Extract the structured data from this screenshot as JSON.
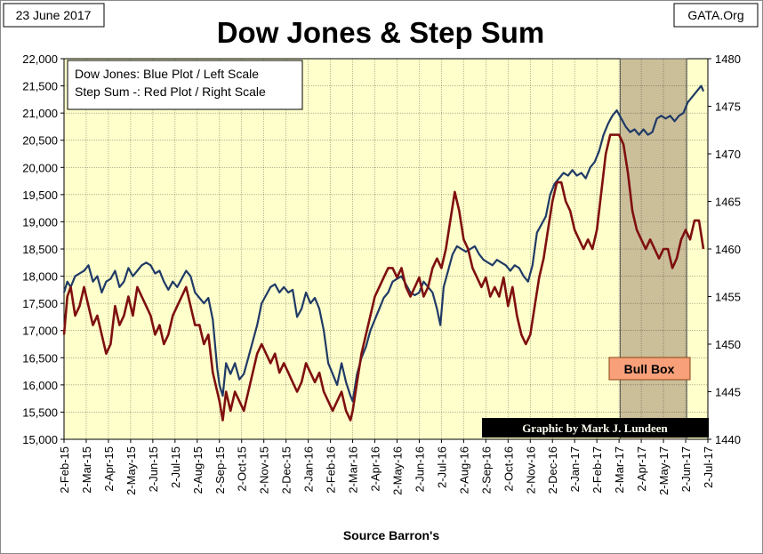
{
  "date_label": "23 June 2017",
  "source_label": "GATA.Org",
  "credit": "Graphic by Mark J. Lundeen",
  "footer": "Source Barron's",
  "annotation": "Bull Box",
  "legend": [
    "Dow Jones: Blue Plot / Left Scale",
    "Step Sum -: Red Plot / Right Scale"
  ],
  "colors": {
    "dow": "#1f3a66",
    "step": "#7f0f0f",
    "plot_bg": "#ffffcc",
    "bull_box": "#cbbf9a",
    "bull_label": "#f7a07a"
  },
  "chart_data": {
    "type": "line",
    "title": "Dow Jones & Step Sum",
    "xlabel": "Source Barron's",
    "x_tick_labels": [
      "2-Feb-15",
      "2-Mar-15",
      "2-Apr-15",
      "2-May-15",
      "2-Jun-15",
      "2-Jul-15",
      "2-Aug-15",
      "2-Sep-15",
      "2-Oct-15",
      "2-Nov-15",
      "2-Dec-15",
      "2-Jan-16",
      "2-Feb-16",
      "2-Mar-16",
      "2-Apr-16",
      "2-May-16",
      "2-Jun-16",
      "2-Jul-16",
      "2-Aug-16",
      "2-Sep-16",
      "2-Oct-16",
      "2-Nov-16",
      "2-Dec-16",
      "2-Jan-17",
      "2-Feb-17",
      "2-Mar-17",
      "2-Apr-17",
      "2-May-17",
      "2-Jun-17",
      "2-Jul-17"
    ],
    "x_range_months": [
      0,
      29
    ],
    "left_axis": {
      "label": "Dow Jones",
      "range": [
        15000,
        22000
      ],
      "ticks": [
        "15,000",
        "15,500",
        "16,000",
        "16,500",
        "17,000",
        "17,500",
        "18,000",
        "18,500",
        "19,000",
        "19,500",
        "20,000",
        "20,500",
        "21,000",
        "21,500",
        "22,000"
      ]
    },
    "right_axis": {
      "label": "Step Sum",
      "range": [
        1440,
        1480
      ],
      "ticks": [
        "1440",
        "1445",
        "1450",
        "1455",
        "1460",
        "1465",
        "1470",
        "1475",
        "1480"
      ]
    },
    "bull_box_months": [
      25.05,
      28.05
    ],
    "series": [
      {
        "name": "Dow Jones",
        "axis": "left",
        "points": [
          [
            0.0,
            17700
          ],
          [
            0.15,
            17900
          ],
          [
            0.3,
            17800
          ],
          [
            0.5,
            18000
          ],
          [
            0.7,
            18050
          ],
          [
            0.9,
            18100
          ],
          [
            1.1,
            18200
          ],
          [
            1.3,
            17900
          ],
          [
            1.5,
            18000
          ],
          [
            1.7,
            17700
          ],
          [
            1.9,
            17900
          ],
          [
            2.1,
            17950
          ],
          [
            2.3,
            18100
          ],
          [
            2.5,
            17800
          ],
          [
            2.7,
            17900
          ],
          [
            2.9,
            18150
          ],
          [
            3.1,
            18000
          ],
          [
            3.3,
            18100
          ],
          [
            3.5,
            18200
          ],
          [
            3.7,
            18250
          ],
          [
            3.9,
            18200
          ],
          [
            4.1,
            18050
          ],
          [
            4.3,
            18100
          ],
          [
            4.5,
            17900
          ],
          [
            4.7,
            17750
          ],
          [
            4.9,
            17900
          ],
          [
            5.1,
            17800
          ],
          [
            5.3,
            17950
          ],
          [
            5.5,
            18100
          ],
          [
            5.7,
            18000
          ],
          [
            5.9,
            17700
          ],
          [
            6.1,
            17600
          ],
          [
            6.3,
            17500
          ],
          [
            6.5,
            17600
          ],
          [
            6.7,
            17200
          ],
          [
            6.9,
            16300
          ],
          [
            7.0,
            16000
          ],
          [
            7.15,
            15800
          ],
          [
            7.3,
            16400
          ],
          [
            7.5,
            16200
          ],
          [
            7.7,
            16400
          ],
          [
            7.9,
            16100
          ],
          [
            8.1,
            16200
          ],
          [
            8.3,
            16500
          ],
          [
            8.5,
            16800
          ],
          [
            8.7,
            17100
          ],
          [
            8.9,
            17500
          ],
          [
            9.1,
            17650
          ],
          [
            9.3,
            17800
          ],
          [
            9.5,
            17850
          ],
          [
            9.7,
            17700
          ],
          [
            9.9,
            17800
          ],
          [
            10.1,
            17700
          ],
          [
            10.3,
            17750
          ],
          [
            10.5,
            17250
          ],
          [
            10.7,
            17400
          ],
          [
            10.9,
            17700
          ],
          [
            11.1,
            17500
          ],
          [
            11.3,
            17600
          ],
          [
            11.5,
            17400
          ],
          [
            11.7,
            17000
          ],
          [
            11.9,
            16400
          ],
          [
            12.1,
            16200
          ],
          [
            12.3,
            16000
          ],
          [
            12.5,
            16400
          ],
          [
            12.7,
            16050
          ],
          [
            12.9,
            15800
          ],
          [
            13.0,
            15700
          ],
          [
            13.2,
            16200
          ],
          [
            13.4,
            16500
          ],
          [
            13.6,
            16700
          ],
          [
            13.8,
            17000
          ],
          [
            14.0,
            17200
          ],
          [
            14.2,
            17400
          ],
          [
            14.4,
            17600
          ],
          [
            14.6,
            17700
          ],
          [
            14.8,
            17900
          ],
          [
            15.0,
            17950
          ],
          [
            15.2,
            18000
          ],
          [
            15.4,
            17850
          ],
          [
            15.6,
            17700
          ],
          [
            15.8,
            17650
          ],
          [
            16.0,
            17700
          ],
          [
            16.2,
            17900
          ],
          [
            16.4,
            17800
          ],
          [
            16.6,
            17700
          ],
          [
            16.8,
            17400
          ],
          [
            16.95,
            17100
          ],
          [
            17.1,
            17800
          ],
          [
            17.3,
            18100
          ],
          [
            17.5,
            18400
          ],
          [
            17.7,
            18550
          ],
          [
            17.9,
            18500
          ],
          [
            18.1,
            18450
          ],
          [
            18.3,
            18500
          ],
          [
            18.5,
            18550
          ],
          [
            18.7,
            18400
          ],
          [
            18.9,
            18300
          ],
          [
            19.1,
            18250
          ],
          [
            19.3,
            18200
          ],
          [
            19.5,
            18300
          ],
          [
            19.7,
            18250
          ],
          [
            19.9,
            18200
          ],
          [
            20.1,
            18100
          ],
          [
            20.3,
            18200
          ],
          [
            20.5,
            18150
          ],
          [
            20.7,
            18000
          ],
          [
            20.9,
            17900
          ],
          [
            21.1,
            18200
          ],
          [
            21.3,
            18800
          ],
          [
            21.5,
            18950
          ],
          [
            21.7,
            19100
          ],
          [
            21.9,
            19500
          ],
          [
            22.1,
            19700
          ],
          [
            22.3,
            19800
          ],
          [
            22.5,
            19900
          ],
          [
            22.7,
            19850
          ],
          [
            22.9,
            19950
          ],
          [
            23.1,
            19850
          ],
          [
            23.3,
            19900
          ],
          [
            23.5,
            19800
          ],
          [
            23.7,
            20000
          ],
          [
            23.9,
            20100
          ],
          [
            24.1,
            20300
          ],
          [
            24.3,
            20600
          ],
          [
            24.5,
            20800
          ],
          [
            24.7,
            20950
          ],
          [
            24.9,
            21050
          ],
          [
            25.1,
            20900
          ],
          [
            25.3,
            20750
          ],
          [
            25.5,
            20650
          ],
          [
            25.7,
            20700
          ],
          [
            25.9,
            20600
          ],
          [
            26.1,
            20700
          ],
          [
            26.3,
            20600
          ],
          [
            26.5,
            20650
          ],
          [
            26.7,
            20900
          ],
          [
            26.9,
            20950
          ],
          [
            27.1,
            20900
          ],
          [
            27.3,
            20950
          ],
          [
            27.5,
            20850
          ],
          [
            27.7,
            20950
          ],
          [
            27.9,
            21000
          ],
          [
            28.1,
            21200
          ],
          [
            28.3,
            21300
          ],
          [
            28.5,
            21400
          ],
          [
            28.7,
            21500
          ],
          [
            28.8,
            21400
          ]
        ]
      },
      {
        "name": "Step Sum",
        "axis": "right",
        "points": [
          [
            0.0,
            1451
          ],
          [
            0.15,
            1455
          ],
          [
            0.3,
            1456
          ],
          [
            0.5,
            1453
          ],
          [
            0.7,
            1454
          ],
          [
            0.9,
            1456
          ],
          [
            1.1,
            1454
          ],
          [
            1.3,
            1452
          ],
          [
            1.5,
            1453
          ],
          [
            1.7,
            1451
          ],
          [
            1.9,
            1449
          ],
          [
            2.1,
            1450
          ],
          [
            2.3,
            1454
          ],
          [
            2.5,
            1452
          ],
          [
            2.7,
            1453
          ],
          [
            2.9,
            1455
          ],
          [
            3.1,
            1453
          ],
          [
            3.3,
            1456
          ],
          [
            3.5,
            1455
          ],
          [
            3.7,
            1454
          ],
          [
            3.9,
            1453
          ],
          [
            4.1,
            1451
          ],
          [
            4.3,
            1452
          ],
          [
            4.5,
            1450
          ],
          [
            4.7,
            1451
          ],
          [
            4.9,
            1453
          ],
          [
            5.1,
            1454
          ],
          [
            5.3,
            1455
          ],
          [
            5.5,
            1456
          ],
          [
            5.7,
            1454
          ],
          [
            5.9,
            1452
          ],
          [
            6.1,
            1452
          ],
          [
            6.3,
            1450
          ],
          [
            6.5,
            1451
          ],
          [
            6.7,
            1447
          ],
          [
            6.9,
            1445
          ],
          [
            7.0,
            1444
          ],
          [
            7.15,
            1442
          ],
          [
            7.3,
            1445
          ],
          [
            7.5,
            1443
          ],
          [
            7.7,
            1445
          ],
          [
            7.9,
            1444
          ],
          [
            8.1,
            1443
          ],
          [
            8.3,
            1445
          ],
          [
            8.5,
            1447
          ],
          [
            8.7,
            1449
          ],
          [
            8.9,
            1450
          ],
          [
            9.1,
            1449
          ],
          [
            9.3,
            1448
          ],
          [
            9.5,
            1449
          ],
          [
            9.7,
            1447
          ],
          [
            9.9,
            1448
          ],
          [
            10.1,
            1447
          ],
          [
            10.3,
            1446
          ],
          [
            10.5,
            1445
          ],
          [
            10.7,
            1446
          ],
          [
            10.9,
            1448
          ],
          [
            11.1,
            1447
          ],
          [
            11.3,
            1446
          ],
          [
            11.5,
            1447
          ],
          [
            11.7,
            1445
          ],
          [
            11.9,
            1444
          ],
          [
            12.1,
            1443
          ],
          [
            12.3,
            1444
          ],
          [
            12.5,
            1445
          ],
          [
            12.7,
            1443
          ],
          [
            12.9,
            1442
          ],
          [
            13.0,
            1443
          ],
          [
            13.2,
            1446
          ],
          [
            13.4,
            1449
          ],
          [
            13.6,
            1451
          ],
          [
            13.8,
            1453
          ],
          [
            14.0,
            1455
          ],
          [
            14.2,
            1456
          ],
          [
            14.4,
            1457
          ],
          [
            14.6,
            1458
          ],
          [
            14.8,
            1458
          ],
          [
            15.0,
            1457
          ],
          [
            15.2,
            1458
          ],
          [
            15.4,
            1456
          ],
          [
            15.6,
            1455
          ],
          [
            15.8,
            1456
          ],
          [
            16.0,
            1457
          ],
          [
            16.2,
            1455
          ],
          [
            16.4,
            1456
          ],
          [
            16.6,
            1458
          ],
          [
            16.8,
            1459
          ],
          [
            17.0,
            1458
          ],
          [
            17.2,
            1460
          ],
          [
            17.4,
            1463
          ],
          [
            17.6,
            1466
          ],
          [
            17.8,
            1464
          ],
          [
            18.0,
            1461
          ],
          [
            18.2,
            1460
          ],
          [
            18.4,
            1458
          ],
          [
            18.6,
            1457
          ],
          [
            18.8,
            1456
          ],
          [
            19.0,
            1457
          ],
          [
            19.2,
            1455
          ],
          [
            19.4,
            1456
          ],
          [
            19.6,
            1455
          ],
          [
            19.8,
            1457
          ],
          [
            20.0,
            1454
          ],
          [
            20.2,
            1456
          ],
          [
            20.4,
            1453
          ],
          [
            20.6,
            1451
          ],
          [
            20.8,
            1450
          ],
          [
            21.0,
            1451
          ],
          [
            21.2,
            1454
          ],
          [
            21.4,
            1457
          ],
          [
            21.6,
            1459
          ],
          [
            21.8,
            1462
          ],
          [
            22.0,
            1465
          ],
          [
            22.2,
            1467
          ],
          [
            22.4,
            1467
          ],
          [
            22.6,
            1465
          ],
          [
            22.8,
            1464
          ],
          [
            23.0,
            1462
          ],
          [
            23.2,
            1461
          ],
          [
            23.4,
            1460
          ],
          [
            23.6,
            1461
          ],
          [
            23.8,
            1460
          ],
          [
            24.0,
            1462
          ],
          [
            24.2,
            1466
          ],
          [
            24.4,
            1470
          ],
          [
            24.6,
            1472
          ],
          [
            24.8,
            1472
          ],
          [
            25.0,
            1472
          ],
          [
            25.2,
            1471
          ],
          [
            25.4,
            1468
          ],
          [
            25.6,
            1464
          ],
          [
            25.8,
            1462
          ],
          [
            26.0,
            1461
          ],
          [
            26.2,
            1460
          ],
          [
            26.4,
            1461
          ],
          [
            26.6,
            1460
          ],
          [
            26.8,
            1459
          ],
          [
            27.0,
            1460
          ],
          [
            27.2,
            1460
          ],
          [
            27.4,
            1458
          ],
          [
            27.6,
            1459
          ],
          [
            27.8,
            1461
          ],
          [
            28.0,
            1462
          ],
          [
            28.2,
            1461
          ],
          [
            28.4,
            1463
          ],
          [
            28.6,
            1463
          ],
          [
            28.8,
            1460
          ]
        ]
      }
    ]
  }
}
